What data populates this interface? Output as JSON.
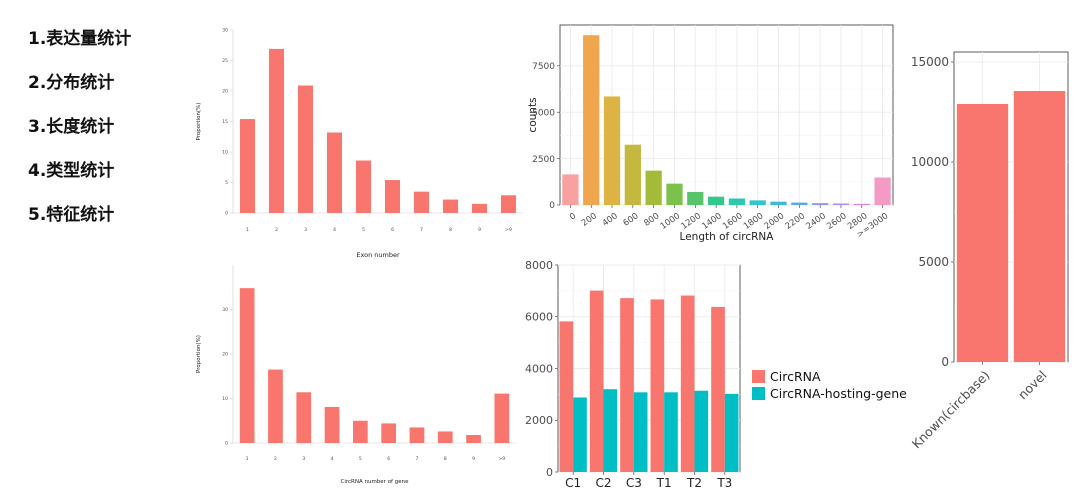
{
  "menu": {
    "items": [
      "1.表达量统计",
      "2.分布统计",
      "3.长度统计",
      "4.类型统计",
      "5.特征统计"
    ]
  },
  "colors": {
    "salmon": "#f8766d",
    "teal": "#00bfc4",
    "grid": "#ebebeb",
    "axis": "#333333",
    "tick_text": "#4d4d4d"
  },
  "chart_data": [
    {
      "id": "exon",
      "type": "bar",
      "categories": [
        "1",
        "2",
        "3",
        "4",
        "5",
        "6",
        "7",
        "8",
        "9",
        ">9"
      ],
      "values": [
        15.4,
        26.9,
        20.9,
        13.2,
        8.6,
        5.4,
        3.5,
        2.2,
        1.5,
        2.9
      ],
      "ylim": [
        0,
        30
      ],
      "yticks": [
        0,
        5,
        10,
        15,
        20,
        25,
        30
      ],
      "xlabel": "Exon number",
      "ylabel": "Proportion(%)",
      "color": "#f8766d",
      "grid": false
    },
    {
      "id": "length",
      "type": "bar",
      "categories": [
        "0",
        "200",
        "400",
        "600",
        "800",
        "1000",
        "1200",
        "1400",
        "1600",
        "1800",
        "2000",
        "2200",
        "2400",
        "2600",
        "2800",
        ">=3000"
      ],
      "values": [
        1650,
        9150,
        5850,
        3250,
        1850,
        1150,
        700,
        450,
        350,
        250,
        180,
        130,
        100,
        80,
        60,
        1480
      ],
      "colors": [
        "#f8a1a0",
        "#f0a64f",
        "#ddb444",
        "#c4b83f",
        "#a4bb3a",
        "#7bc24a",
        "#56c56a",
        "#35c78c",
        "#2dc8ae",
        "#33c5c9",
        "#3db9df",
        "#5aa7ef",
        "#8a98f2",
        "#b38cf0",
        "#d884e4",
        "#f49ac4"
      ],
      "ylim": [
        0,
        9700
      ],
      "yticks": [
        0,
        2500,
        5000,
        7500
      ],
      "xlabel": "Length of circRNA",
      "ylabel": "counts",
      "grid": true
    },
    {
      "id": "known",
      "type": "bar",
      "categories": [
        "Known(circbase)",
        "novel"
      ],
      "values": [
        12900,
        13550
      ],
      "ylim": [
        0,
        15500
      ],
      "yticks": [
        0,
        5000,
        10000,
        15000
      ],
      "color": "#f8766d",
      "grid": true
    },
    {
      "id": "gene",
      "type": "bar",
      "categories": [
        "1",
        "2",
        "3",
        "4",
        "5",
        "6",
        "7",
        "8",
        "9",
        ">9"
      ],
      "values": [
        34.8,
        16.5,
        11.4,
        8.1,
        5.0,
        4.4,
        3.5,
        2.6,
        1.8,
        11.1
      ],
      "ylim": [
        0,
        40
      ],
      "yticks": [
        0,
        10,
        20,
        30
      ],
      "xlabel": "CircRNA number of gene",
      "ylabel": "Proportion(%)",
      "color": "#f8766d",
      "grid": false
    },
    {
      "id": "samples",
      "type": "bar",
      "categories": [
        "C1",
        "C2",
        "C3",
        "T1",
        "T2",
        "T3"
      ],
      "series": [
        {
          "name": "CircRNA",
          "values": [
            5820,
            7010,
            6720,
            6670,
            6820,
            6380
          ],
          "color": "#f8766d"
        },
        {
          "name": "CircRNA-hosting-gene",
          "values": [
            2880,
            3200,
            3080,
            3080,
            3140,
            3020
          ],
          "color": "#00bfc4"
        }
      ],
      "ylim": [
        0,
        8000
      ],
      "yticks": [
        0,
        2000,
        4000,
        6000,
        8000
      ],
      "grid": true,
      "legend": "right"
    }
  ]
}
